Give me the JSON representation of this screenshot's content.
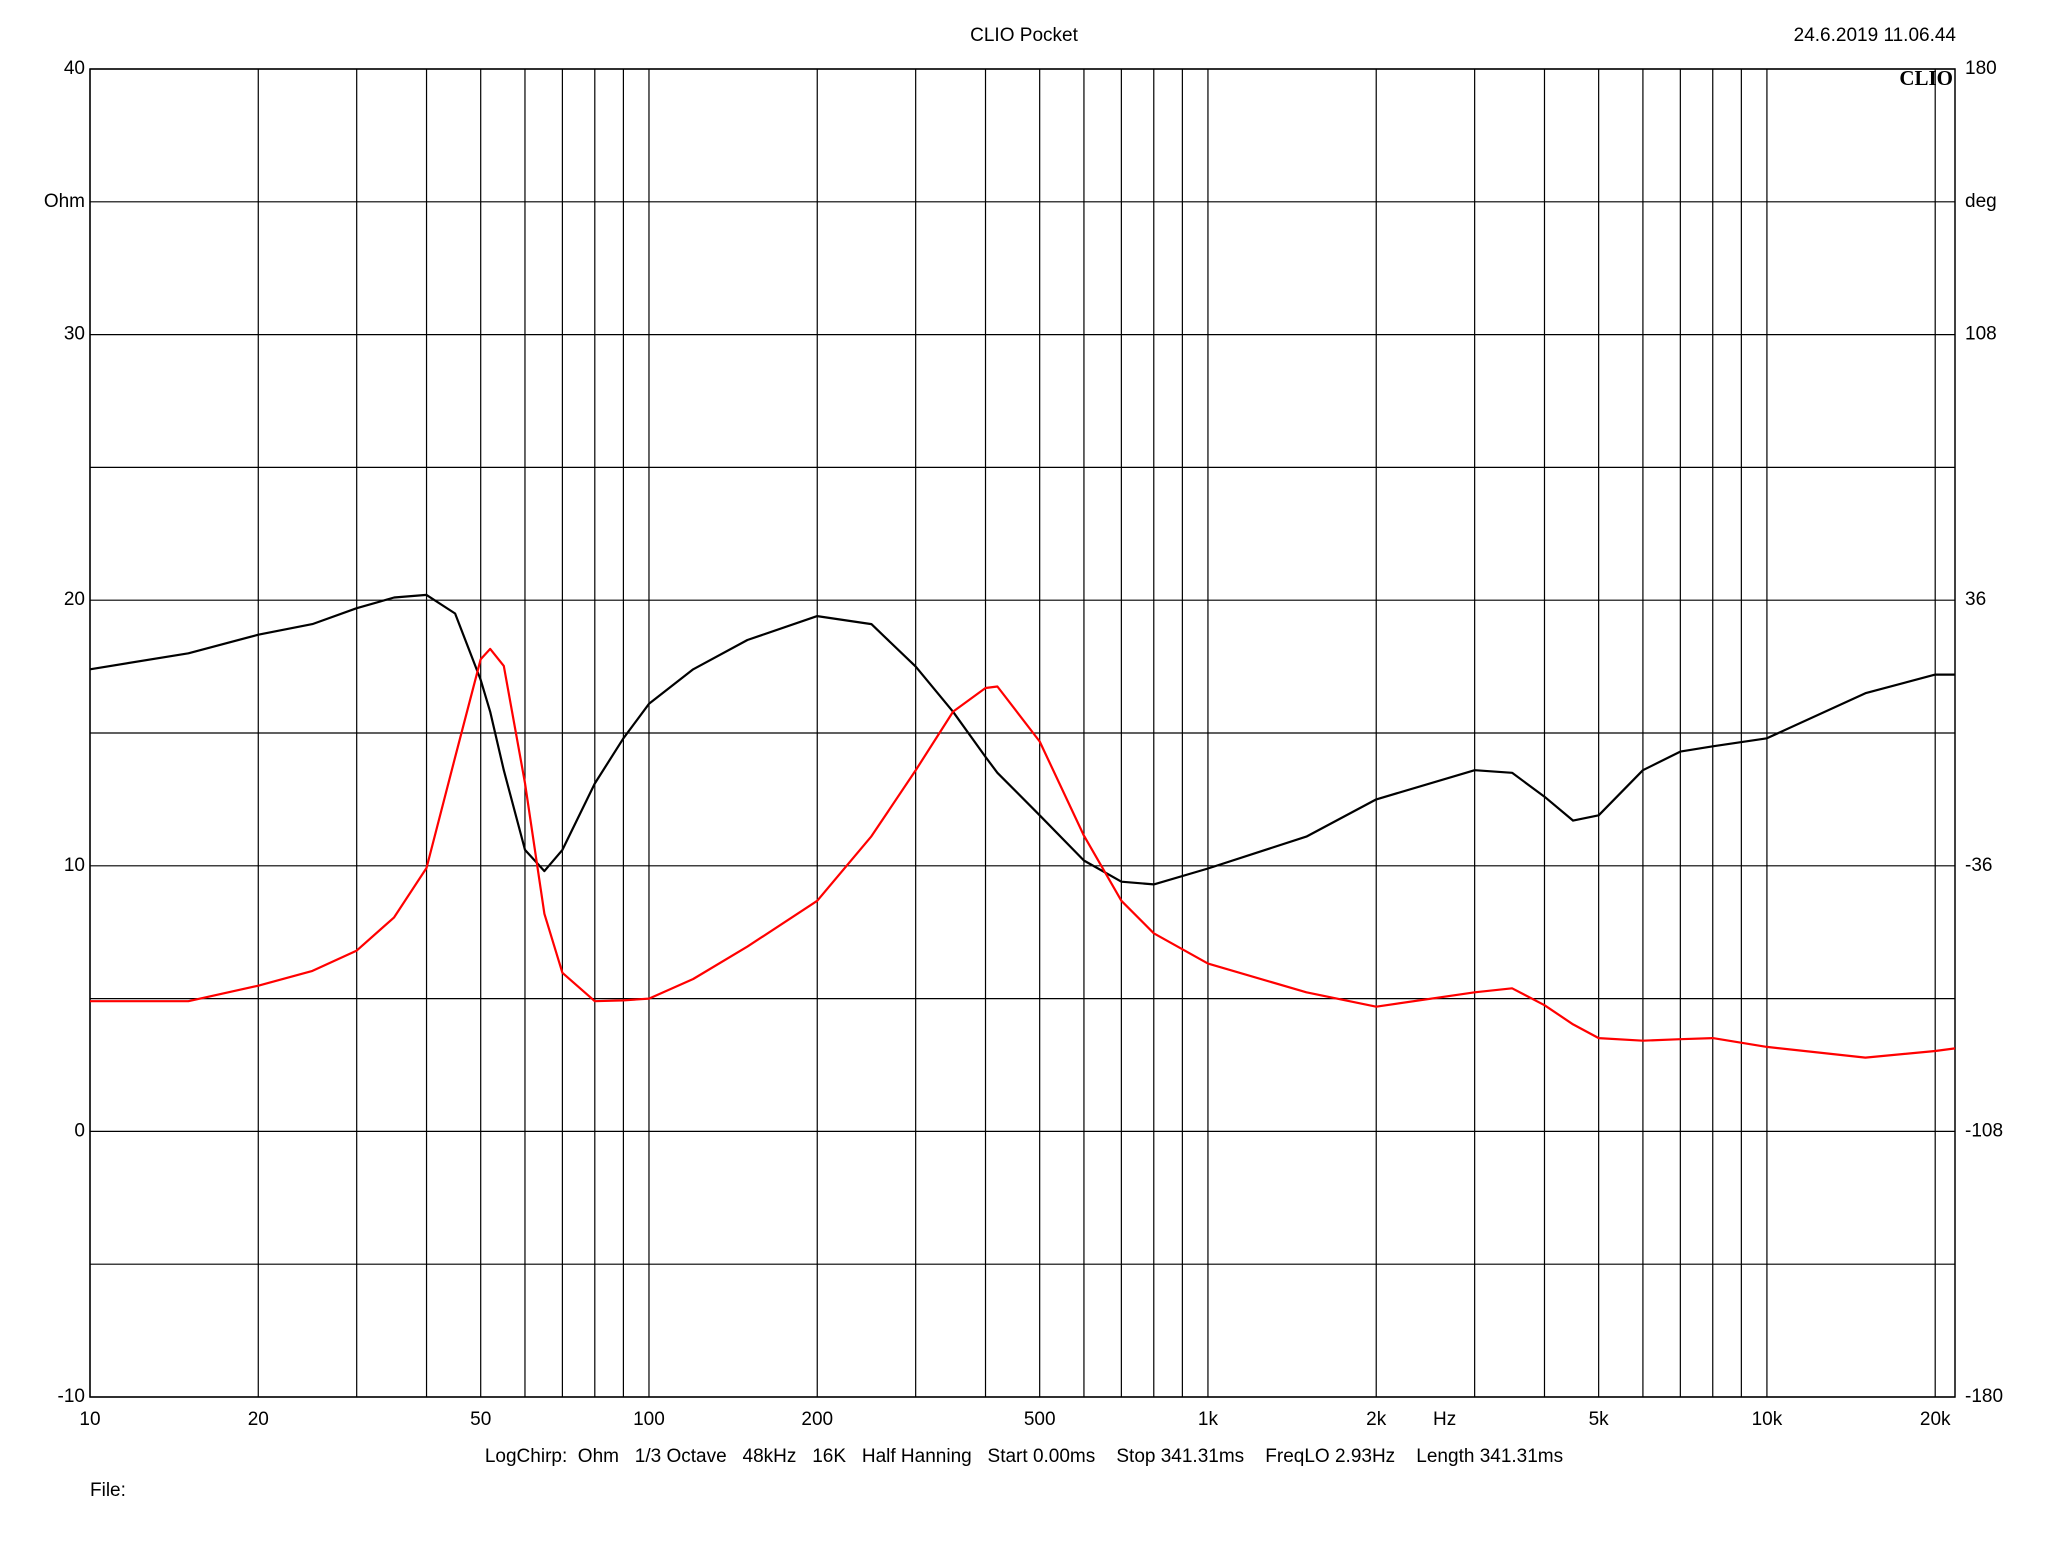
{
  "chart_data": {
    "type": "line",
    "title": "CLIO Pocket",
    "timestamp": "24.6.2019 11.06.44",
    "logo": "CLIO",
    "ylabel": "Ohm",
    "y2label": "deg",
    "xlabel": "Hz",
    "footer": "LogChirp:  Ohm   1/3 Octave   48kHz   16K   Half Hanning   Start 0.00ms    Stop 341.31ms    FreqLO 2.93Hz    Length 341.31ms",
    "file_label": "File:",
    "xscale": "log",
    "grid": true,
    "xlim": [
      10,
      21700
    ],
    "ylim": [
      -10,
      40
    ],
    "y2lim": [
      -180,
      180
    ],
    "xticks": [
      10,
      20,
      50,
      100,
      200,
      500,
      {
        "value": 1000,
        "label": "1k"
      },
      {
        "value": 2000,
        "label": "2k"
      },
      {
        "value": 5000,
        "label": "5k"
      },
      {
        "value": 10000,
        "label": "10k"
      },
      {
        "value": 20000,
        "label": "20k"
      }
    ],
    "minor_xticks": [
      30,
      40,
      60,
      70,
      80,
      90,
      300,
      400,
      600,
      700,
      800,
      900,
      3000,
      4000,
      6000,
      7000,
      8000,
      9000
    ],
    "yticks": [
      -10,
      0,
      10,
      20,
      30,
      40
    ],
    "minor_yticks": [
      -5,
      5,
      15,
      25,
      35
    ],
    "y2ticks": [
      -180,
      -108,
      -36,
      36,
      108,
      180
    ],
    "x": [
      10,
      15,
      20,
      25,
      30,
      35,
      40,
      45,
      50,
      52,
      55,
      60,
      65,
      70,
      80,
      90,
      100,
      120,
      150,
      200,
      250,
      300,
      350,
      400,
      420,
      500,
      600,
      700,
      800,
      1000,
      1500,
      2000,
      3000,
      3500,
      4000,
      4500,
      5000,
      6000,
      7000,
      8000,
      10000,
      15000,
      20000,
      21700
    ],
    "series": [
      {
        "color": "#000000",
        "axis": "y",
        "values": [
          17.4,
          18.0,
          18.7,
          19.1,
          19.7,
          20.1,
          20.2,
          19.5,
          17.0,
          15.8,
          13.6,
          10.6,
          9.8,
          10.6,
          13.1,
          14.8,
          16.1,
          17.4,
          18.5,
          19.4,
          19.1,
          17.5,
          15.8,
          14.1,
          13.5,
          11.9,
          10.2,
          9.4,
          9.3,
          9.9,
          11.1,
          12.5,
          13.6,
          13.5,
          12.6,
          11.7,
          11.9,
          13.6,
          14.3,
          14.5,
          14.8,
          16.5,
          17.2,
          17.2
        ]
      },
      {
        "color": "#ff0000",
        "axis": "y2",
        "values": [
          -72.7,
          -72.7,
          -68.5,
          -64.5,
          -59,
          -50,
          -36.6,
          -6.6,
          20,
          22.8,
          18.2,
          -13.6,
          -49,
          -65,
          -72.7,
          -72.5,
          -72,
          -66.7,
          -57.9,
          -45.5,
          -28,
          -10.1,
          5.8,
          12.2,
          12.6,
          -2.3,
          -27.8,
          -45.5,
          -54.3,
          -62.5,
          -70.3,
          -74.2,
          -70.3,
          -69.2,
          -73.8,
          -79,
          -82.7,
          -83.4,
          -83,
          -82.7,
          -85.1,
          -88,
          -86.2,
          -85.5
        ]
      }
    ]
  }
}
